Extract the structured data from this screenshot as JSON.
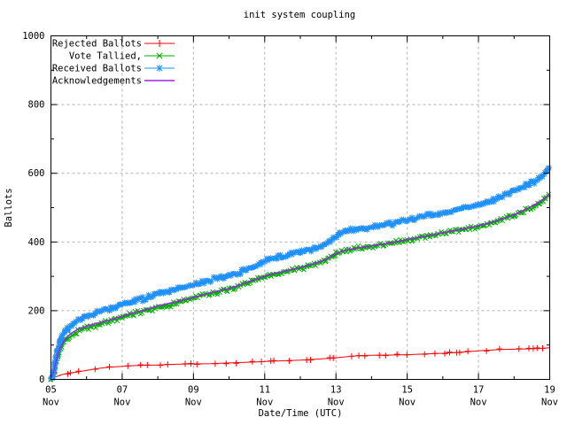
{
  "window": {
    "bg_color": "#ffffff"
  },
  "axes": {
    "ylabel": "Ballots",
    "xlabel": "Date/Time (UTC)",
    "ylim": [
      0,
      1000
    ],
    "y_ticks": [
      0,
      200,
      400,
      600,
      800,
      1000
    ],
    "y_minor": [
      100,
      300,
      500,
      700,
      900
    ],
    "xlim_days": [
      5,
      19
    ],
    "x_ticks": [
      {
        "day": "05",
        "month": "Nov"
      },
      {
        "day": "07",
        "month": "Nov"
      },
      {
        "day": "09",
        "month": "Nov"
      },
      {
        "day": "11",
        "month": "Nov"
      },
      {
        "day": "13",
        "month": "Nov"
      },
      {
        "day": "15",
        "month": "Nov"
      },
      {
        "day": "17",
        "month": "Nov"
      },
      {
        "day": "19",
        "month": "Nov"
      }
    ],
    "x_minor_days": [
      6,
      8,
      10,
      12,
      14,
      16,
      18
    ],
    "grid_color": "#b4b4b4",
    "border_color": "#000000"
  },
  "chart_data": {
    "type": "line",
    "title": "init system coupling",
    "xlabel": "Date/Time (UTC)",
    "ylabel": "Ballots",
    "ylim": [
      0,
      1000
    ],
    "x_unit": "day of November (UTC)",
    "grid": "on",
    "legend_position": "top-left-inside",
    "series": [
      {
        "name": "Rejected Ballots",
        "color": "#ff0000",
        "marker": "plus",
        "marker_density": "sparse",
        "x": [
          5.0,
          5.1,
          5.2,
          5.3,
          5.5,
          5.75,
          6.0,
          6.2,
          6.4,
          6.6,
          7.0,
          7.3,
          7.6,
          8.0,
          8.5,
          9.0,
          9.5,
          10.0,
          10.5,
          10.8,
          11.0,
          11.5,
          12.0,
          12.3,
          12.6,
          13.0,
          13.3,
          13.6,
          14.0,
          14.5,
          15.0,
          15.5,
          16.0,
          16.3,
          16.6,
          17.0,
          17.3,
          17.6,
          18.0,
          18.4,
          18.7,
          19.0
        ],
        "y": [
          0,
          6,
          10,
          14,
          18,
          22,
          26,
          30,
          33,
          35,
          38,
          40,
          41,
          42,
          44,
          45,
          46,
          48,
          50,
          51,
          52,
          54,
          56,
          58,
          60,
          63,
          66,
          69,
          70,
          71,
          72,
          74,
          76,
          78,
          80,
          83,
          85,
          87,
          88,
          89,
          90,
          92
        ]
      },
      {
        "name": "Vote Tallied,",
        "color": "#00aa00",
        "marker": "cross",
        "marker_density": "dense",
        "x": [
          5.0,
          5.05,
          5.1,
          5.15,
          5.2,
          5.3,
          5.4,
          5.5,
          5.6,
          5.75,
          6.0,
          6.25,
          6.5,
          6.75,
          7.0,
          7.25,
          7.5,
          7.75,
          8.0,
          8.25,
          8.5,
          8.75,
          9.0,
          9.25,
          9.5,
          9.75,
          10.0,
          10.25,
          10.5,
          10.75,
          10.9,
          11.0,
          11.25,
          11.5,
          11.75,
          12.0,
          12.25,
          12.5,
          12.7,
          12.85,
          13.0,
          13.1,
          13.25,
          13.5,
          13.75,
          14.0,
          14.25,
          14.5,
          14.75,
          15.0,
          15.25,
          15.5,
          15.75,
          16.0,
          16.25,
          16.5,
          16.75,
          17.0,
          17.25,
          17.5,
          17.75,
          18.0,
          18.2,
          18.4,
          18.6,
          18.8,
          19.0
        ],
        "y": [
          0,
          8,
          25,
          48,
          70,
          95,
          112,
          122,
          130,
          140,
          150,
          157,
          164,
          172,
          180,
          188,
          195,
          203,
          210,
          216,
          222,
          229,
          236,
          243,
          250,
          256,
          262,
          270,
          280,
          289,
          294,
          298,
          305,
          311,
          317,
          323,
          330,
          338,
          346,
          356,
          365,
          369,
          374,
          379,
          383,
          387,
          391,
          395,
          400,
          405,
          410,
          415,
          420,
          425,
          430,
          435,
          440,
          446,
          452,
          460,
          468,
          478,
          487,
          497,
          508,
          521,
          538
        ]
      },
      {
        "name": "Received Ballots",
        "color": "#1e90ff",
        "marker": "star",
        "marker_density": "dense",
        "x": [
          5.0,
          5.05,
          5.1,
          5.15,
          5.2,
          5.3,
          5.4,
          5.5,
          5.6,
          5.75,
          6.0,
          6.25,
          6.5,
          6.75,
          7.0,
          7.25,
          7.5,
          7.75,
          8.0,
          8.25,
          8.5,
          8.75,
          9.0,
          9.25,
          9.5,
          9.75,
          10.0,
          10.25,
          10.5,
          10.75,
          10.9,
          11.0,
          11.25,
          11.5,
          11.75,
          12.0,
          12.25,
          12.5,
          12.7,
          12.85,
          13.0,
          13.1,
          13.25,
          13.5,
          13.75,
          14.0,
          14.25,
          14.5,
          14.75,
          15.0,
          15.25,
          15.5,
          15.75,
          16.0,
          16.25,
          16.5,
          16.75,
          17.0,
          17.25,
          17.5,
          17.75,
          18.0,
          18.2,
          18.4,
          18.6,
          18.8,
          19.0
        ],
        "y": [
          2,
          15,
          40,
          70,
          95,
          125,
          142,
          152,
          160,
          172,
          185,
          193,
          200,
          208,
          216,
          224,
          232,
          241,
          249,
          256,
          262,
          268,
          274,
          281,
          289,
          295,
          302,
          310,
          320,
          331,
          338,
          345,
          352,
          358,
          364,
          370,
          378,
          386,
          394,
          405,
          418,
          424,
          429,
          434,
          439,
          443,
          447,
          452,
          458,
          464,
          470,
          475,
          480,
          486,
          491,
          497,
          503,
          510,
          517,
          526,
          537,
          549,
          559,
          569,
          578,
          592,
          618
        ]
      },
      {
        "name": "Acknowledgements",
        "color": "#a020f0",
        "marker": "none",
        "marker_density": "none",
        "x": [
          5.0,
          5.05,
          5.1,
          5.15,
          5.2,
          5.3,
          5.4,
          5.5,
          5.6,
          5.75,
          6.0,
          6.25,
          6.5,
          6.75,
          7.0,
          7.25,
          7.5,
          7.75,
          8.0,
          8.25,
          8.5,
          8.75,
          9.0,
          9.25,
          9.5,
          9.75,
          10.0,
          10.25,
          10.5,
          10.75,
          10.9,
          11.0,
          11.25,
          11.5,
          11.75,
          12.0,
          12.25,
          12.5,
          12.7,
          12.85,
          13.0,
          13.1,
          13.25,
          13.5,
          13.75,
          14.0,
          14.25,
          14.5,
          14.75,
          15.0,
          15.25,
          15.5,
          15.75,
          16.0,
          16.25,
          16.5,
          16.75,
          17.0,
          17.25,
          17.5,
          17.75,
          18.0,
          18.2,
          18.4,
          18.6,
          18.8,
          19.0
        ],
        "y": [
          6,
          14,
          31,
          54,
          76,
          101,
          118,
          128,
          136,
          146,
          155,
          162,
          169,
          176,
          184,
          192,
          199,
          206,
          214,
          220,
          226,
          233,
          239,
          246,
          253,
          259,
          265,
          273,
          283,
          292,
          297,
          301,
          308,
          314,
          320,
          326,
          333,
          341,
          349,
          358,
          367,
          371,
          376,
          381,
          385,
          389,
          393,
          397,
          402,
          407,
          412,
          417,
          422,
          427,
          432,
          437,
          442,
          448,
          454,
          462,
          470,
          480,
          489,
          499,
          510,
          523,
          540
        ]
      }
    ]
  }
}
